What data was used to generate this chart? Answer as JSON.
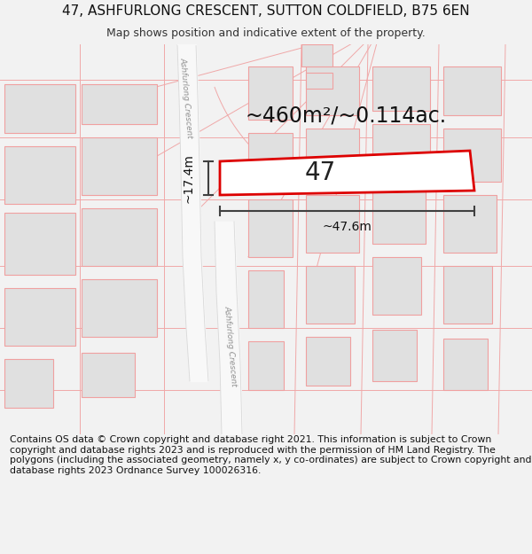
{
  "title": "47, ASHFURLONG CRESCENT, SUTTON COLDFIELD, B75 6EN",
  "subtitle": "Map shows position and indicative extent of the property.",
  "footer": "Contains OS data © Crown copyright and database right 2021. This information is subject to Crown copyright and database rights 2023 and is reproduced with the permission of HM Land Registry. The polygons (including the associated geometry, namely x, y co-ordinates) are subject to Crown copyright and database rights 2023 Ordnance Survey 100026316.",
  "area_text": "~460m²/~0.114ac.",
  "width_text": "~47.6m",
  "height_text": "~17.4m",
  "lot_label": "47",
  "road_label": "Ashfurlong Crescent",
  "bg_color": "#f2f2f2",
  "map_bg": "#ffffff",
  "building_fill": "#e0e0e0",
  "building_stroke": "#f0a0a0",
  "road_fill": "#f8f8f8",
  "road_edge": "#d8d8d8",
  "line_color": "#f0a8a8",
  "highlight_stroke": "#dd0000",
  "dim_color": "#404040",
  "title_fontsize": 11,
  "subtitle_fontsize": 9,
  "area_fontsize": 17,
  "lot_fontsize": 20,
  "dim_fontsize": 10,
  "footer_fontsize": 7.8
}
